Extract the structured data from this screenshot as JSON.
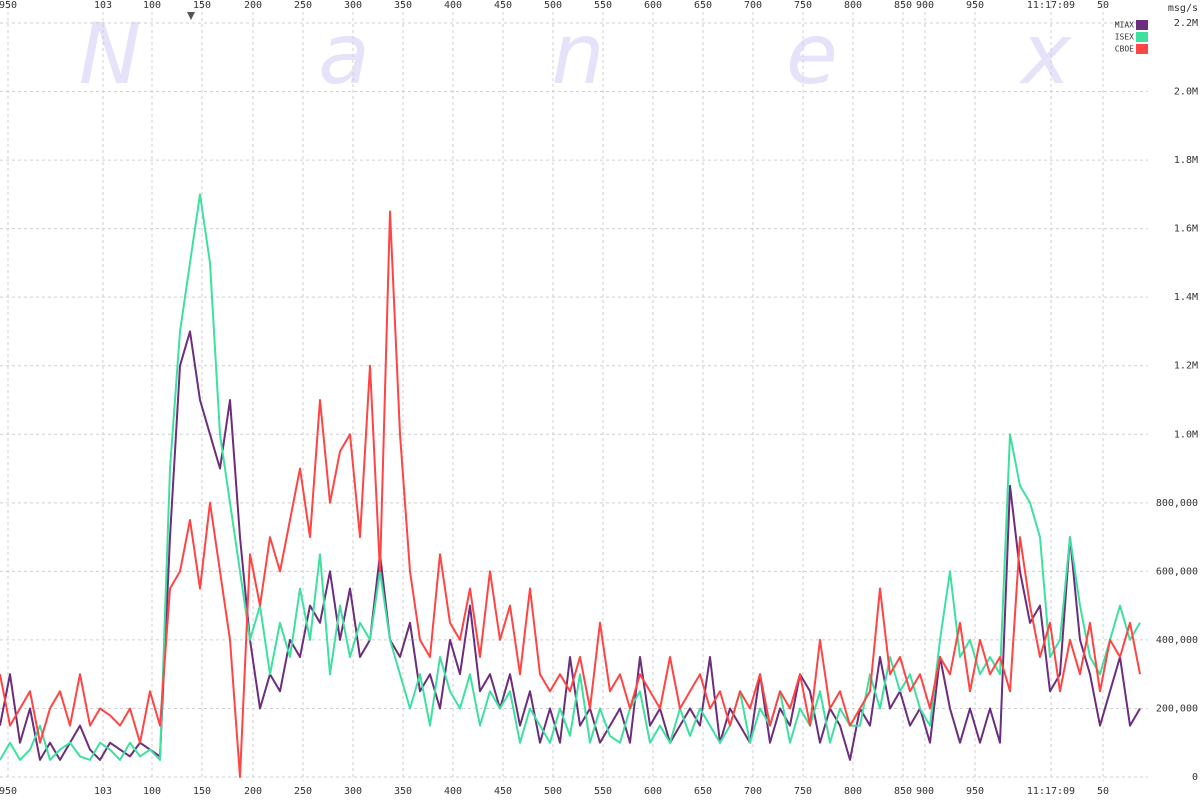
{
  "chart_data": {
    "type": "line",
    "watermark": [
      "N",
      "a",
      "n",
      "e",
      "x"
    ],
    "y_unit": "msg/s",
    "x": [
      0,
      10,
      20,
      30,
      40,
      50,
      60,
      70,
      80,
      90,
      100,
      110,
      120,
      130,
      140,
      150,
      160,
      170,
      180,
      190,
      200,
      210,
      220,
      230,
      240,
      250,
      260,
      270,
      280,
      290,
      300,
      310,
      320,
      330,
      340,
      350,
      360,
      370,
      380,
      390,
      400,
      410,
      420,
      430,
      440,
      450,
      460,
      470,
      480,
      490,
      500,
      510,
      520,
      530,
      540,
      550,
      560,
      570,
      580,
      590,
      600,
      610,
      620,
      630,
      640,
      650,
      660,
      670,
      680,
      690,
      700,
      710,
      720,
      730,
      740,
      750,
      760,
      770,
      780,
      790,
      800,
      810,
      820,
      830,
      840,
      850,
      860,
      870,
      880,
      890,
      900,
      910,
      920,
      930,
      940,
      950,
      960,
      970,
      980,
      990,
      1000,
      1010,
      1020,
      1030,
      1040,
      1050,
      1060,
      1070,
      1080,
      1090,
      1100,
      1110,
      1120,
      1130,
      1140
    ],
    "series": [
      {
        "name": "MIAX",
        "color": "#6b2d7c",
        "values": [
          150000,
          300000,
          100000,
          200000,
          50000,
          100000,
          50000,
          100000,
          150000,
          80000,
          50000,
          100000,
          80000,
          60000,
          100000,
          80000,
          60000,
          700000,
          1200000,
          1300000,
          1100000,
          1000000,
          900000,
          1100000,
          700000,
          400000,
          200000,
          300000,
          250000,
          400000,
          350000,
          500000,
          450000,
          600000,
          400000,
          550000,
          350000,
          400000,
          650000,
          400000,
          350000,
          450000,
          250000,
          300000,
          200000,
          400000,
          300000,
          500000,
          250000,
          300000,
          200000,
          300000,
          150000,
          250000,
          100000,
          200000,
          100000,
          350000,
          150000,
          200000,
          100000,
          150000,
          200000,
          100000,
          350000,
          150000,
          200000,
          100000,
          150000,
          200000,
          150000,
          350000,
          100000,
          200000,
          150000,
          100000,
          300000,
          100000,
          200000,
          150000,
          300000,
          250000,
          100000,
          200000,
          150000,
          50000,
          200000,
          150000,
          350000,
          200000,
          250000,
          150000,
          200000,
          100000,
          350000,
          200000,
          100000,
          200000,
          100000,
          200000,
          100000,
          850000,
          600000,
          450000,
          500000,
          250000,
          300000,
          700000,
          400000,
          300000,
          150000,
          250000,
          350000,
          150000,
          200000
        ]
      },
      {
        "name": "ISEX",
        "color": "#3ee0a0",
        "values": [
          50000,
          100000,
          50000,
          80000,
          150000,
          50000,
          80000,
          100000,
          60000,
          50000,
          100000,
          80000,
          50000,
          100000,
          60000,
          80000,
          50000,
          900000,
          1300000,
          1500000,
          1700000,
          1500000,
          1000000,
          800000,
          600000,
          400000,
          500000,
          300000,
          450000,
          350000,
          550000,
          400000,
          650000,
          300000,
          500000,
          350000,
          450000,
          400000,
          600000,
          400000,
          300000,
          200000,
          300000,
          150000,
          350000,
          250000,
          200000,
          300000,
          150000,
          250000,
          200000,
          250000,
          100000,
          200000,
          150000,
          100000,
          200000,
          120000,
          300000,
          100000,
          200000,
          120000,
          100000,
          200000,
          250000,
          100000,
          150000,
          100000,
          200000,
          120000,
          200000,
          150000,
          100000,
          150000,
          250000,
          100000,
          200000,
          150000,
          250000,
          100000,
          200000,
          150000,
          250000,
          100000,
          200000,
          150000,
          150000,
          300000,
          200000,
          350000,
          250000,
          300000,
          200000,
          150000,
          400000,
          600000,
          350000,
          400000,
          300000,
          350000,
          300000,
          1000000,
          850000,
          800000,
          700000,
          350000,
          400000,
          700000,
          500000,
          350000,
          300000,
          400000,
          500000,
          400000,
          450000
        ]
      },
      {
        "name": "CBOE",
        "color": "#ff4444",
        "values": [
          300000,
          150000,
          200000,
          250000,
          100000,
          200000,
          250000,
          150000,
          300000,
          150000,
          200000,
          180000,
          150000,
          200000,
          100000,
          250000,
          150000,
          550000,
          600000,
          750000,
          550000,
          800000,
          600000,
          400000,
          0,
          650000,
          500000,
          700000,
          600000,
          750000,
          900000,
          700000,
          1100000,
          800000,
          950000,
          1000000,
          700000,
          1200000,
          600000,
          1650000,
          1000000,
          600000,
          400000,
          350000,
          650000,
          450000,
          400000,
          550000,
          350000,
          600000,
          400000,
          500000,
          300000,
          550000,
          300000,
          250000,
          300000,
          250000,
          350000,
          200000,
          450000,
          250000,
          300000,
          200000,
          300000,
          250000,
          200000,
          350000,
          200000,
          250000,
          300000,
          200000,
          250000,
          150000,
          250000,
          200000,
          300000,
          150000,
          250000,
          200000,
          300000,
          150000,
          400000,
          200000,
          250000,
          150000,
          200000,
          250000,
          550000,
          300000,
          350000,
          250000,
          300000,
          200000,
          350000,
          300000,
          450000,
          250000,
          400000,
          300000,
          350000,
          250000,
          700000,
          500000,
          350000,
          450000,
          250000,
          400000,
          300000,
          450000,
          250000,
          400000,
          350000,
          450000,
          300000
        ]
      }
    ],
    "xlim": [
      0,
      1148
    ],
    "xticks": [
      {
        "value": 8,
        "label": "950"
      },
      103,
      {
        "value": 152,
        "label": "100"
      },
      {
        "value": 202,
        "label": "150"
      },
      {
        "value": 253,
        "label": "200"
      },
      {
        "value": 303,
        "label": "250"
      },
      {
        "value": 353,
        "label": "300"
      },
      {
        "value": 403,
        "label": "350"
      },
      {
        "value": 453,
        "label": "400"
      },
      {
        "value": 503,
        "label": "450"
      },
      {
        "value": 553,
        "label": "500"
      },
      {
        "value": 603,
        "label": "550"
      },
      {
        "value": 653,
        "label": "600"
      },
      {
        "value": 703,
        "label": "650"
      },
      {
        "value": 753,
        "label": "700"
      },
      {
        "value": 803,
        "label": "750"
      },
      {
        "value": 853,
        "label": "800"
      },
      {
        "value": 903,
        "label": "850"
      },
      {
        "value": 925,
        "label": "900"
      },
      {
        "value": 975,
        "label": "950"
      },
      {
        "value": 1051,
        "label": "11:17:09"
      },
      {
        "value": 1103,
        "label": "50"
      }
    ],
    "ylim": [
      0,
      2200000
    ],
    "yticks": [
      0,
      {
        "value": 200000,
        "label": "200,000"
      },
      {
        "value": 400000,
        "label": "400,000"
      },
      {
        "value": 600000,
        "label": "600,000"
      },
      {
        "value": 800000,
        "label": "800,000"
      },
      {
        "value": 1000000,
        "label": "1.0M"
      },
      {
        "value": 1200000,
        "label": "1.2M"
      },
      {
        "value": 1400000,
        "label": "1.4M"
      },
      {
        "value": 1600000,
        "label": "1.6M"
      },
      {
        "value": 1800000,
        "label": "1.8M"
      },
      {
        "value": 2000000,
        "label": "2.0M"
      },
      {
        "value": 2200000,
        "label": "2.2M"
      }
    ],
    "grid": true
  }
}
